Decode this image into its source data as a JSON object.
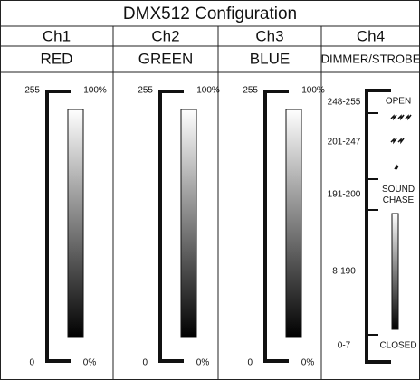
{
  "header": {
    "title": "DMX512 Configuration"
  },
  "channels": [
    {
      "name": "Ch1",
      "function": "RED",
      "top_value": "255",
      "top_percent": "100%",
      "bottom_value": "0",
      "bottom_percent": "0%"
    },
    {
      "name": "Ch2",
      "function": "GREEN",
      "top_value": "255",
      "top_percent": "100%",
      "bottom_value": "0",
      "bottom_percent": "0%"
    },
    {
      "name": "Ch3",
      "function": "BLUE",
      "top_value": "255",
      "top_percent": "100%",
      "bottom_value": "0",
      "bottom_percent": "0%"
    },
    {
      "name": "Ch4",
      "function": "DIMMER/STROBE",
      "ranges": [
        {
          "range": "248-255",
          "label": "OPEN"
        },
        {
          "range": "201-247"
        },
        {
          "range": "191-200",
          "label": "SOUND CHASE"
        },
        {
          "range": "8-190"
        },
        {
          "range": "0-7",
          "label": "CLOSED"
        }
      ]
    }
  ]
}
